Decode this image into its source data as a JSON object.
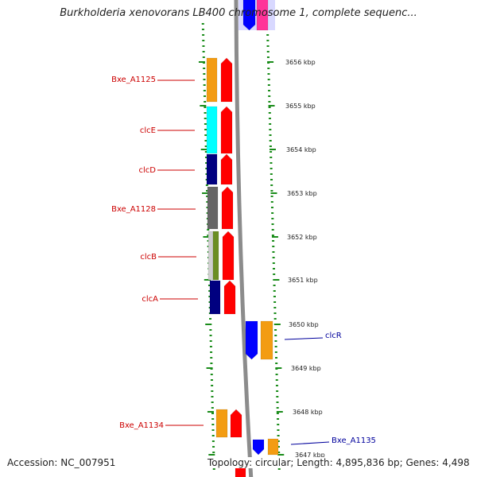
{
  "title": "Burkholderia xenovorans LB400 chromosome 1, complete sequenc...",
  "footer": {
    "accession": "Accession: NC_007951",
    "summary": "Topology: circular; Length: 4,895,836 bp; Genes: 4,498"
  },
  "colors": {
    "orange": "#f39c12",
    "red": "#ff0000",
    "cyan": "#00ffff",
    "navy": "#000080",
    "gray": "#666666",
    "olive": "#6b8e23",
    "blue": "#0000ff",
    "pink": "#ff3399",
    "lavender": "#d8d8ff",
    "tick_green": "#1a8c1a",
    "left_label": "#cc0000",
    "right_label": "#00009c"
  },
  "scale": {
    "unit": "kbp",
    "ticks": [
      {
        "label": "3656 kbp"
      },
      {
        "label": "3655 kbp"
      },
      {
        "label": "3654 kbp"
      },
      {
        "label": "3653 kbp"
      },
      {
        "label": "3652 kbp"
      },
      {
        "label": "3651 kbp"
      },
      {
        "label": "3650 kbp"
      },
      {
        "label": "3649 kbp"
      },
      {
        "label": "3648 kbp"
      },
      {
        "label": "3647 kbp"
      }
    ]
  },
  "genes": [
    {
      "name": "Bxe_A1125",
      "color": "orange",
      "strand": "-"
    },
    {
      "name": "clcE",
      "color": "cyan",
      "strand": "-"
    },
    {
      "name": "clcD",
      "color": "navy",
      "strand": "-"
    },
    {
      "name": "Bxe_A1128",
      "color": "gray",
      "strand": "-"
    },
    {
      "name": "clcB",
      "color": "olive",
      "strand": "-"
    },
    {
      "name": "clcA",
      "color": "navy",
      "strand": "-"
    },
    {
      "name": "clcR",
      "color": "orange",
      "strand": "+"
    },
    {
      "name": "Bxe_A1134",
      "color": "orange",
      "strand": "-"
    },
    {
      "name": "Bxe_A1135",
      "color": "orange",
      "strand": "+"
    }
  ]
}
